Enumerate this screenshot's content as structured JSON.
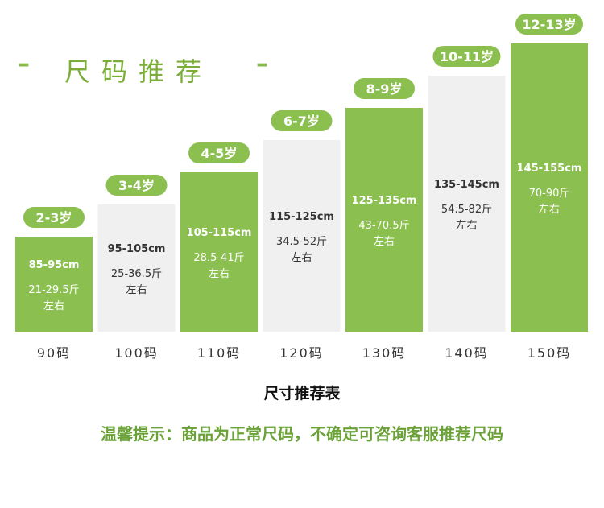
{
  "header": {
    "left_dash": "–",
    "title": "尺码推荐",
    "right_dash": "–"
  },
  "colors": {
    "accent_green": "#8bbf4f",
    "pale_gray": "#f0f0f0",
    "title_green": "#7aae38",
    "notice_green": "#6aa238"
  },
  "chart_data": {
    "type": "bar",
    "title": "尺寸推荐表",
    "categories": [
      "90码",
      "100码",
      "110码",
      "120码",
      "130码",
      "140码",
      "150码"
    ],
    "age_labels": [
      "2-3岁",
      "3-4岁",
      "4-5岁",
      "6-7岁",
      "8-9岁",
      "10-11岁",
      "12-13岁"
    ],
    "height_ranges": [
      "85-95cm",
      "95-105cm",
      "105-115cm",
      "115-125cm",
      "125-135cm",
      "135-145cm",
      "145-155cm"
    ],
    "weight_ranges": [
      "21-29.5斤",
      "25-36.5斤",
      "28.5-41斤",
      "34.5-52斤",
      "43-70.5斤",
      "54.5-82斤",
      "70-90斤"
    ],
    "weight_suffix": "左右",
    "values": [
      90,
      100,
      110,
      120,
      130,
      140,
      150
    ],
    "bar_colors": [
      "#8bbf4f",
      "#f0f0f0",
      "#8bbf4f",
      "#f0f0f0",
      "#8bbf4f",
      "#f0f0f0",
      "#8bbf4f"
    ]
  },
  "notice": "温馨提示：商品为正常尺码，不确定可咨询客服推荐尺码"
}
